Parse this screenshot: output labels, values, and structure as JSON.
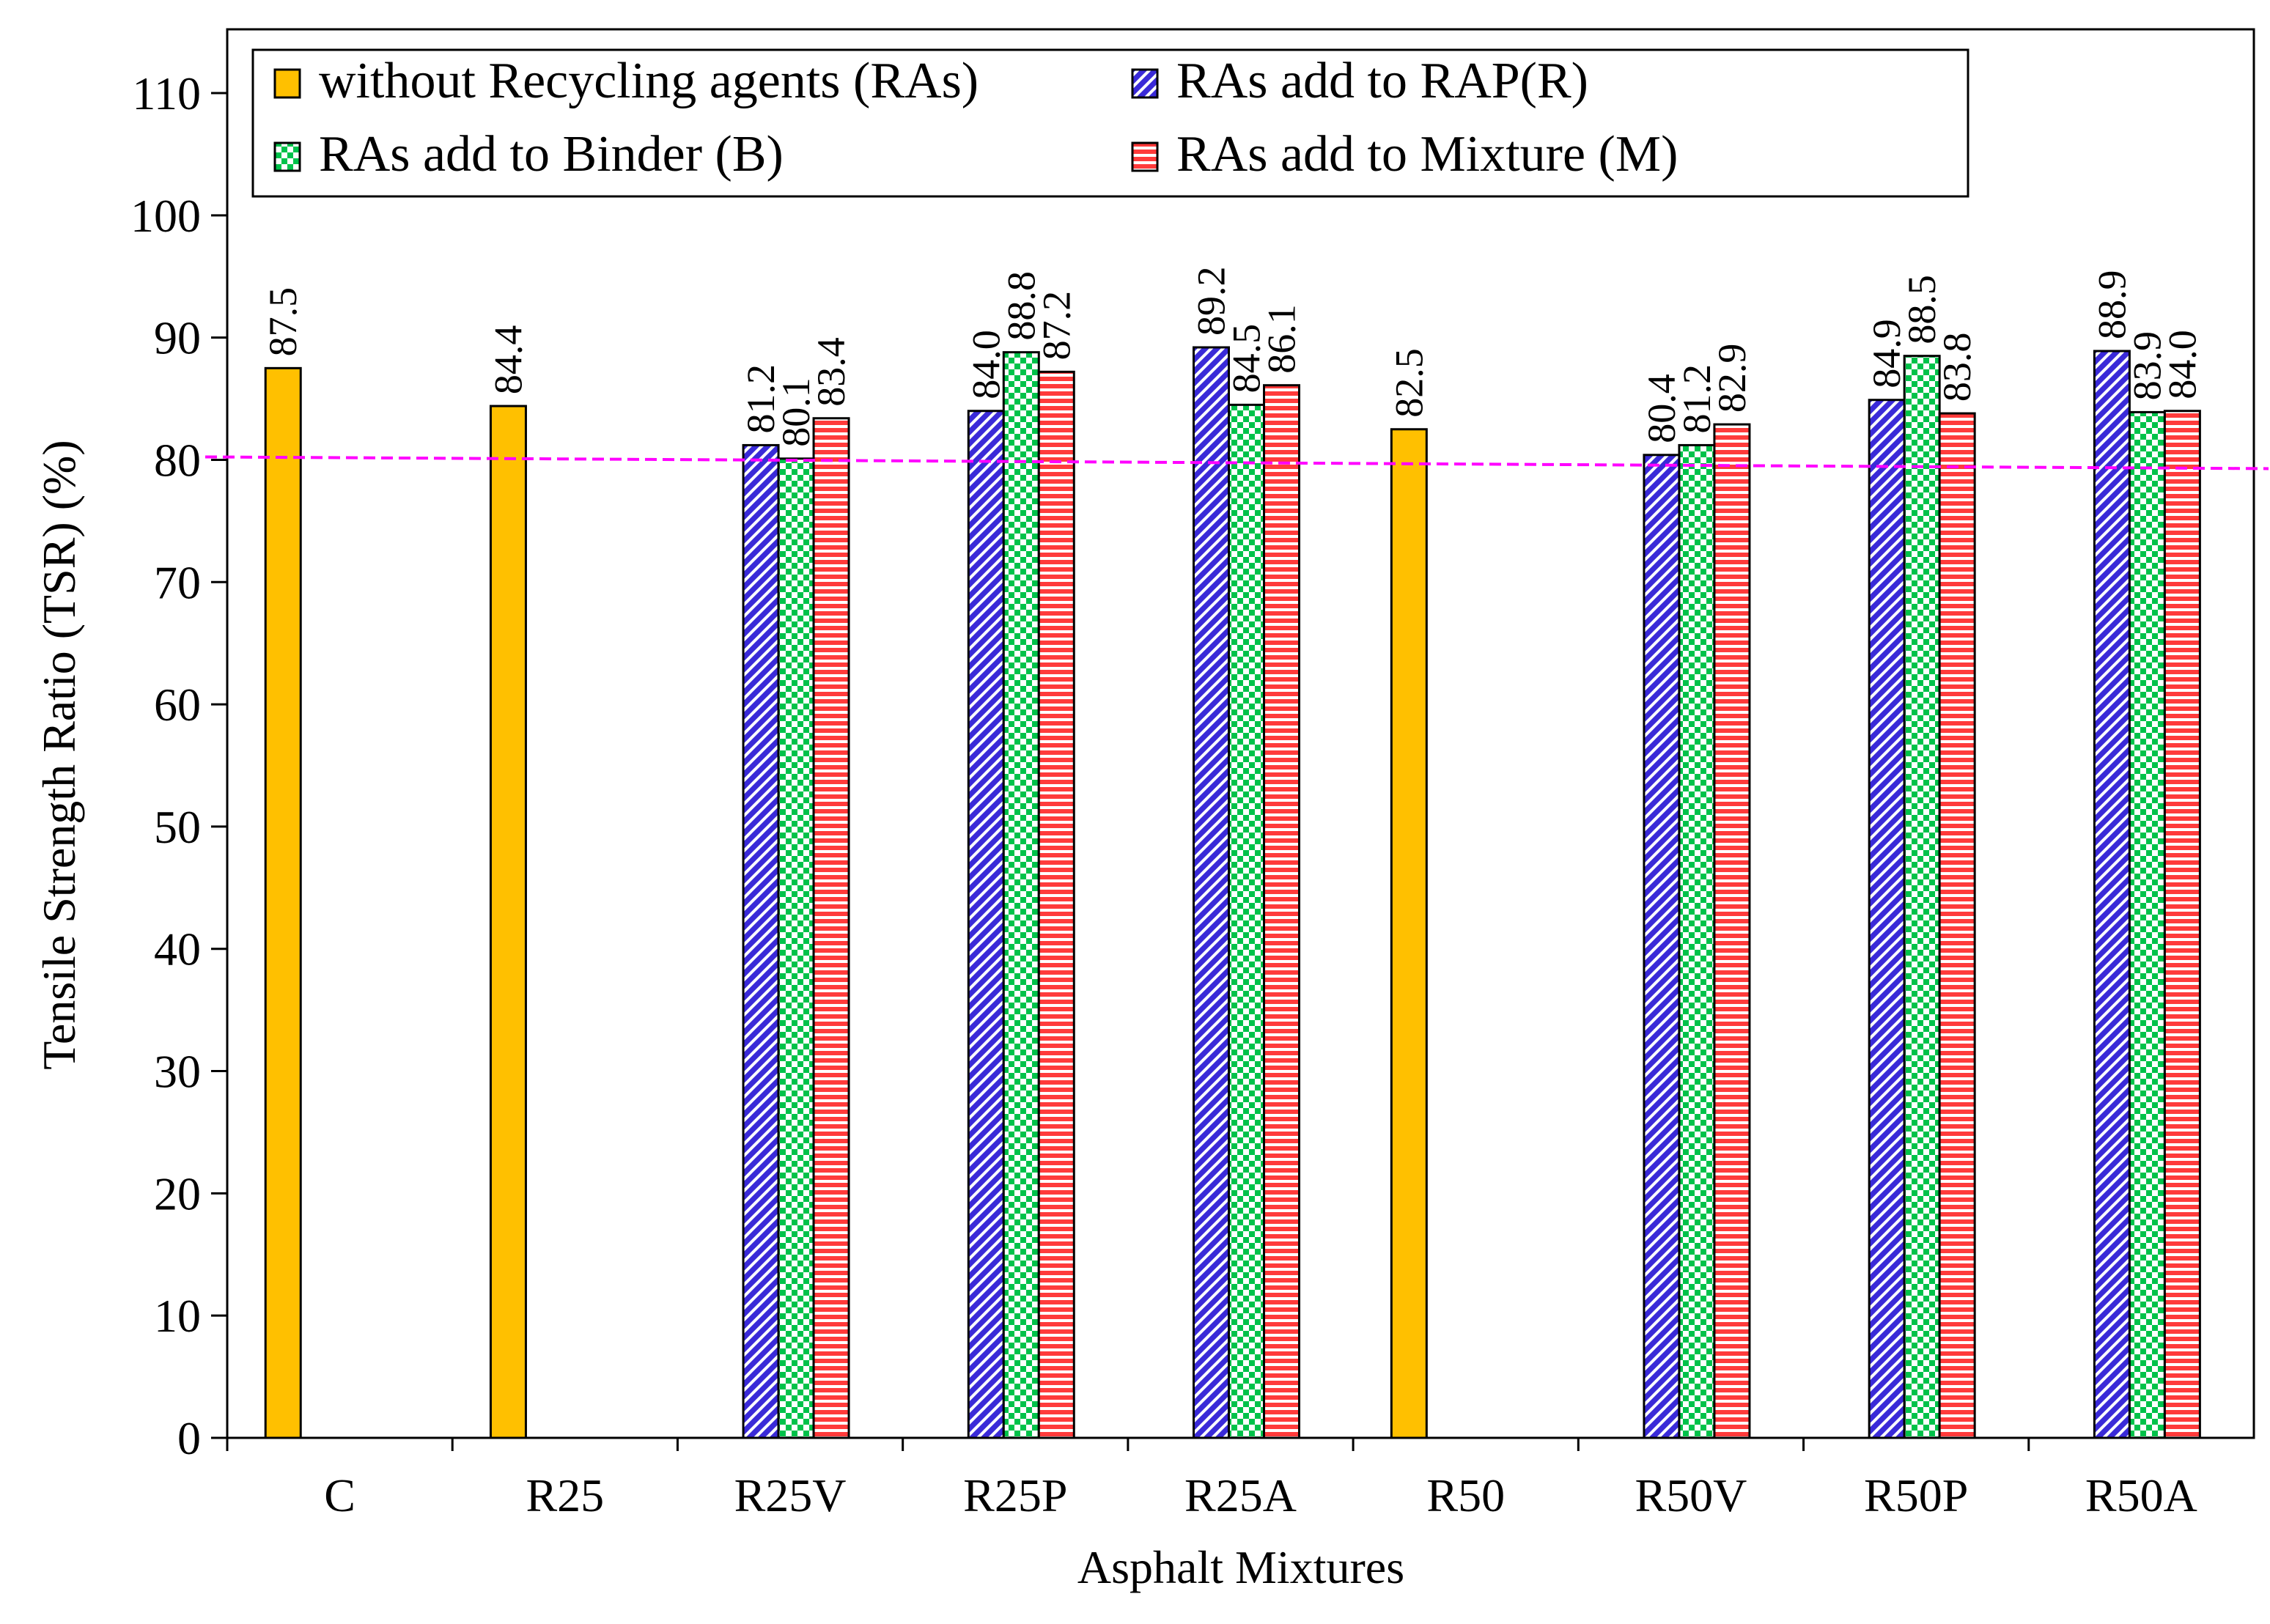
{
  "chart_data": {
    "type": "bar",
    "title": "",
    "xlabel": "Asphalt Mixtures",
    "ylabel": "Tensile Strength Ratio (TSR) (%)",
    "ylim": [
      0,
      110
    ],
    "yticks": [
      0,
      10,
      20,
      30,
      40,
      50,
      60,
      70,
      80,
      90,
      100,
      110
    ],
    "categories": [
      "C",
      "R25",
      "R25V",
      "R25P",
      "R25A",
      "R50",
      "R50V",
      "R50P",
      "R50A"
    ],
    "series": [
      {
        "name": "without Recycling agents (RAs)",
        "color": "#FFC000",
        "pattern": "solid",
        "values": [
          87.5,
          84.4,
          null,
          null,
          null,
          82.5,
          null,
          null,
          null
        ],
        "labels": [
          "87.5",
          "84.4",
          null,
          null,
          null,
          "82.5",
          null,
          null,
          null
        ]
      },
      {
        "name": "RAs add to RAP(R)",
        "color": "#3a2ad8",
        "pattern": "diagonal",
        "values": [
          null,
          null,
          81.2,
          84.0,
          89.2,
          null,
          80.4,
          84.9,
          88.9
        ],
        "labels": [
          null,
          null,
          "81.2",
          "84.0",
          "89.2",
          null,
          "80.4",
          "84.9",
          "88.9"
        ]
      },
      {
        "name": "RAs add to Binder (B)",
        "color": "#00c24a",
        "pattern": "checker",
        "values": [
          null,
          null,
          80.1,
          88.8,
          84.5,
          null,
          81.2,
          88.5,
          83.9
        ],
        "labels": [
          null,
          null,
          "80.1",
          "88.8",
          "84.5",
          null,
          "81.2",
          "88.5",
          "83.9"
        ]
      },
      {
        "name": "RAs add to Mixture (M)",
        "color": "#ff3b3b",
        "pattern": "horizontal",
        "values": [
          null,
          null,
          83.4,
          87.2,
          86.1,
          null,
          82.9,
          83.8,
          84.0
        ],
        "labels": [
          null,
          null,
          "83.4",
          "87.2",
          "86.1",
          null,
          "82.9",
          "83.8",
          "84.0"
        ]
      }
    ],
    "reference_line": {
      "value": 80,
      "color": "#ff00ff",
      "style": "dashed"
    },
    "legend": {
      "position": "top-left",
      "columns": 2
    },
    "grid": false
  }
}
